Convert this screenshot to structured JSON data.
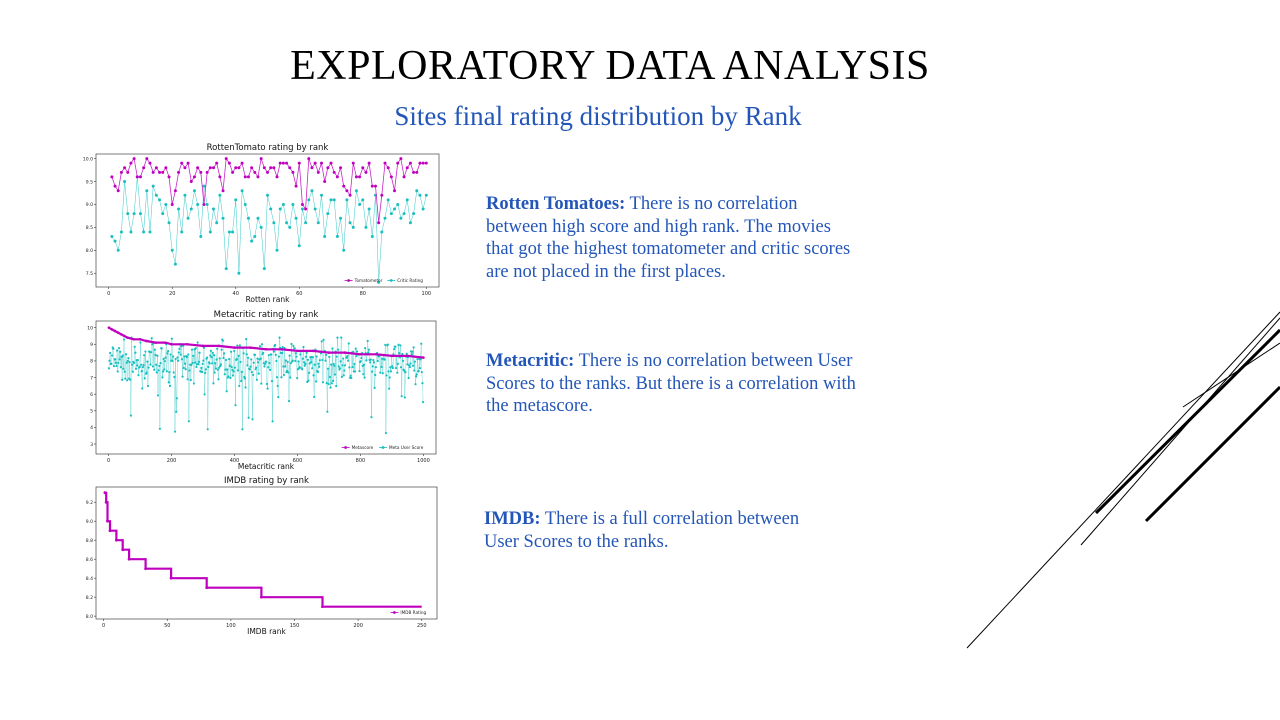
{
  "slide": {
    "title": "EXPLORATORY DATA ANALYSIS",
    "subtitle": "Sites final rating distribution by Rank"
  },
  "descriptions": [
    {
      "heading": "Rotten Tomatoes:",
      "text": " There is no correlation between high score and high rank. The movies that got the highest tomatometer and critic scores are not placed in the first places."
    },
    {
      "heading": "Metacritic:",
      "text": " There is no correlation between User Scores to the ranks. But there is a correlation with the metascore."
    },
    {
      "heading": "IMDB:",
      "text": " There is a full correlation between User Scores to the ranks."
    }
  ],
  "colors": {
    "magenta": "#bf00bf",
    "cyan": "#17bfbf",
    "accent_text": "#2356b8"
  },
  "chart_data": [
    {
      "type": "line",
      "title": "RottenTomato rating by rank",
      "xlabel": "Rotten rank",
      "ylabel": "",
      "xlim": [
        -4,
        104
      ],
      "ylim": [
        7.2,
        10.1
      ],
      "xticks": [
        0,
        20,
        40,
        60,
        80,
        100
      ],
      "yticks": [
        7.5,
        8.0,
        8.5,
        9.0,
        9.5,
        10.0
      ],
      "ytick_labels": [
        "7.5",
        "8.0",
        "8.5",
        "9.0",
        "9.5",
        "10.0"
      ],
      "legend_position": "lower-right",
      "series": [
        {
          "name": "Tomatometer",
          "color": "#bf00bf",
          "x": [
            1,
            2,
            3,
            4,
            5,
            6,
            7,
            8,
            9,
            10,
            11,
            12,
            13,
            14,
            15,
            16,
            17,
            18,
            19,
            20,
            21,
            22,
            23,
            24,
            25,
            26,
            27,
            28,
            29,
            30,
            31,
            32,
            33,
            34,
            35,
            36,
            37,
            38,
            39,
            40,
            41,
            42,
            43,
            44,
            45,
            46,
            47,
            48,
            49,
            50,
            51,
            52,
            53,
            54,
            55,
            56,
            57,
            58,
            59,
            60,
            61,
            62,
            63,
            64,
            65,
            66,
            67,
            68,
            69,
            70,
            71,
            72,
            73,
            74,
            75,
            76,
            77,
            78,
            79,
            80,
            81,
            82,
            83,
            84,
            85,
            86,
            87,
            88,
            89,
            90,
            91,
            92,
            93,
            94,
            95,
            96,
            97,
            98,
            99,
            100
          ],
          "values": [
            9.6,
            9.4,
            9.3,
            9.7,
            9.8,
            9.7,
            9.9,
            10.0,
            9.6,
            9.6,
            9.8,
            10.0,
            9.9,
            9.7,
            9.8,
            9.7,
            9.7,
            9.8,
            9.6,
            9.0,
            9.3,
            9.7,
            9.9,
            9.8,
            9.9,
            9.5,
            9.6,
            9.8,
            9.7,
            9.0,
            9.7,
            9.8,
            9.8,
            9.9,
            9.6,
            9.3,
            10.0,
            9.9,
            9.7,
            9.8,
            9.8,
            9.9,
            9.6,
            9.6,
            9.8,
            9.7,
            9.6,
            10.0,
            9.8,
            9.7,
            9.8,
            9.8,
            9.6,
            9.9,
            9.9,
            9.9,
            9.8,
            9.7,
            9.4,
            9.9,
            9.0,
            8.9,
            10.0,
            9.8,
            9.9,
            9.7,
            9.9,
            9.5,
            9.8,
            9.9,
            9.7,
            9.6,
            9.8,
            9.4,
            9.3,
            9.2,
            9.9,
            9.6,
            9.6,
            9.8,
            9.7,
            9.9,
            9.4,
            9.4,
            8.6,
            9.2,
            9.9,
            9.8,
            9.6,
            9.3,
            9.9,
            10.0,
            9.6,
            9.8,
            9.9,
            9.7,
            9.7,
            9.9,
            9.9,
            9.9
          ]
        },
        {
          "name": "Critic Rating",
          "color": "#17bfbf",
          "x": [
            1,
            2,
            3,
            4,
            5,
            6,
            7,
            8,
            9,
            10,
            11,
            12,
            13,
            14,
            15,
            16,
            17,
            18,
            19,
            20,
            21,
            22,
            23,
            24,
            25,
            26,
            27,
            28,
            29,
            30,
            31,
            32,
            33,
            34,
            35,
            36,
            37,
            38,
            39,
            40,
            41,
            42,
            43,
            44,
            45,
            46,
            47,
            48,
            49,
            50,
            51,
            52,
            53,
            54,
            55,
            56,
            57,
            58,
            59,
            60,
            61,
            62,
            63,
            64,
            65,
            66,
            67,
            68,
            69,
            70,
            71,
            72,
            73,
            74,
            75,
            76,
            77,
            78,
            79,
            80,
            81,
            82,
            83,
            84,
            85,
            86,
            87,
            88,
            89,
            90,
            91,
            92,
            93,
            94,
            95,
            96,
            97,
            98,
            99,
            100
          ],
          "values": [
            8.3,
            8.2,
            8.0,
            8.4,
            9.5,
            8.8,
            8.4,
            8.8,
            9.6,
            8.8,
            8.4,
            9.3,
            8.4,
            9.4,
            9.2,
            9.1,
            8.8,
            9.0,
            8.6,
            8.0,
            7.7,
            8.9,
            8.4,
            9.2,
            8.7,
            8.9,
            9.3,
            9.0,
            8.3,
            9.4,
            9.0,
            8.4,
            8.9,
            8.6,
            9.2,
            8.7,
            7.6,
            8.4,
            8.4,
            9.1,
            7.5,
            9.3,
            9.0,
            8.7,
            8.2,
            8.3,
            8.7,
            8.5,
            7.6,
            9.2,
            8.9,
            8.6,
            8.0,
            8.9,
            9.0,
            8.6,
            8.5,
            9.0,
            8.7,
            8.1,
            8.9,
            8.6,
            9.1,
            9.3,
            8.9,
            8.6,
            9.2,
            8.3,
            8.8,
            9.1,
            9.1,
            8.3,
            8.7,
            8.0,
            9.1,
            8.6,
            8.5,
            9.3,
            9.0,
            9.1,
            8.5,
            8.9,
            8.3,
            9.2,
            7.3,
            8.4,
            8.7,
            9.1,
            8.8,
            8.9,
            9.0,
            8.7,
            8.8,
            9.1,
            8.6,
            8.8,
            9.3,
            9.2,
            8.9,
            9.2
          ]
        }
      ]
    },
    {
      "type": "line",
      "title": "Metacritic rating by rank",
      "xlabel": "Metacritic rank",
      "ylabel": "",
      "xlim": [
        -40,
        1040
      ],
      "ylim": [
        2.4,
        10.4
      ],
      "xticks": [
        0,
        200,
        400,
        600,
        800,
        1000
      ],
      "yticks": [
        3,
        4,
        5,
        6,
        7,
        8,
        9,
        10
      ],
      "ytick_labels": [
        "3",
        "4",
        "5",
        "6",
        "7",
        "8",
        "9",
        "10"
      ],
      "legend_position": "lower-right",
      "series": [
        {
          "name": "Metascore",
          "color": "#bf00bf",
          "x": [
            1,
            10,
            20,
            30,
            40,
            50,
            60,
            80,
            100,
            120,
            150,
            180,
            200,
            250,
            300,
            350,
            400,
            450,
            500,
            550,
            600,
            650,
            700,
            750,
            800,
            850,
            900,
            950,
            1000
          ],
          "values": [
            10.0,
            9.9,
            9.8,
            9.7,
            9.6,
            9.5,
            9.4,
            9.3,
            9.3,
            9.2,
            9.1,
            9.1,
            9.0,
            9.0,
            8.9,
            8.9,
            8.8,
            8.8,
            8.7,
            8.7,
            8.6,
            8.6,
            8.5,
            8.5,
            8.4,
            8.4,
            8.3,
            8.3,
            8.2
          ]
        },
        {
          "name": "Meta User Score",
          "color": "#17bfbf",
          "values_summary": "about 1000 points ranging 2.6 to 9.4, mostly between 7 and 9"
        }
      ]
    },
    {
      "type": "line",
      "title": "IMDB rating by rank",
      "xlabel": "IMDB rank",
      "ylabel": "",
      "xlim": [
        -6,
        262
      ],
      "ylim": [
        7.97,
        9.36
      ],
      "xticks": [
        0,
        50,
        100,
        150,
        200,
        250
      ],
      "yticks": [
        8.0,
        8.2,
        8.4,
        8.6,
        8.8,
        9.0,
        9.2
      ],
      "ytick_labels": [
        "8.0",
        "8.2",
        "8.4",
        "8.6",
        "8.8",
        "9.0",
        "9.2"
      ],
      "legend_position": "lower-right",
      "series": [
        {
          "name": "IMDB Rating",
          "color": "#bf00bf",
          "steps": [
            [
              1,
              2,
              9.3
            ],
            [
              2,
              3,
              9.2
            ],
            [
              3,
              5,
              9.0
            ],
            [
              5,
              10,
              8.9
            ],
            [
              10,
              15,
              8.8
            ],
            [
              15,
              20,
              8.7
            ],
            [
              20,
              33,
              8.6
            ],
            [
              33,
              53,
              8.5
            ],
            [
              53,
              81,
              8.4
            ],
            [
              81,
              124,
              8.3
            ],
            [
              124,
              172,
              8.2
            ],
            [
              172,
              250,
              8.1
            ]
          ]
        }
      ]
    }
  ]
}
